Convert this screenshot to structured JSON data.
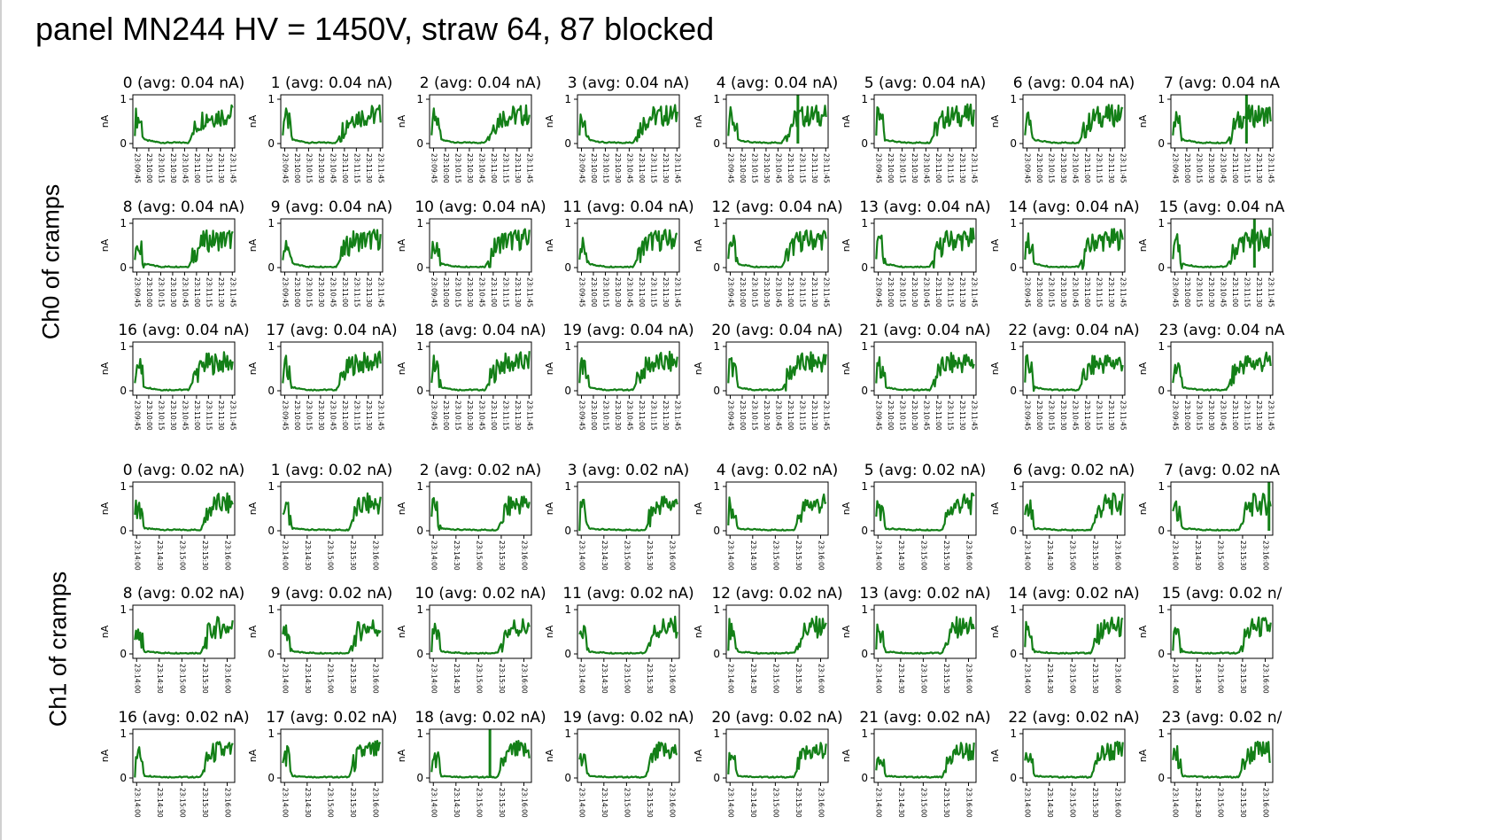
{
  "page": {
    "title": "panel MN244 HV = 1450V, straw 64, 87 blocked"
  },
  "groups": [
    {
      "label": "Ch0 of cramps"
    },
    {
      "label": "Ch1 of cramps"
    }
  ],
  "colors": {
    "series": "#137f17",
    "axes": "#000000",
    "background": "#ffffff"
  },
  "chart_data": [
    {
      "type": "line",
      "group": "Ch0 of cramps",
      "panels_per_row": 8,
      "channels": [
        {
          "title": "0 (avg: 0.04 nA)",
          "spike_at": null
        },
        {
          "title": "1 (avg: 0.04 nA)",
          "spike_at": null
        },
        {
          "title": "2 (avg: 0.04 nA)",
          "spike_at": null
        },
        {
          "title": "3 (avg: 0.04 nA)",
          "spike_at": null
        },
        {
          "title": "4 (avg: 0.04 nA)",
          "spike_at": "23:11:10"
        },
        {
          "title": "5 (avg: 0.04 nA)",
          "spike_at": null
        },
        {
          "title": "6 (avg: 0.04 nA)",
          "spike_at": null
        },
        {
          "title": "7 (avg: 0.04 nA",
          "spike_at": "23:11:15"
        },
        {
          "title": "8 (avg: 0.04 nA)",
          "spike_at": null
        },
        {
          "title": "9 (avg: 0.04 nA)",
          "spike_at": null
        },
        {
          "title": "10 (avg: 0.04 nA)",
          "spike_at": null
        },
        {
          "title": "11 (avg: 0.04 nA)",
          "spike_at": null
        },
        {
          "title": "12 (avg: 0.04 nA)",
          "spike_at": null
        },
        {
          "title": "13 (avg: 0.04 nA)",
          "spike_at": null
        },
        {
          "title": "14 (avg: 0.04 nA)",
          "spike_at": null
        },
        {
          "title": "15 (avg: 0.04 nA",
          "spike_at": "23:11:25"
        },
        {
          "title": "16 (avg: 0.04 nA)",
          "spike_at": null
        },
        {
          "title": "17 (avg: 0.04 nA)",
          "spike_at": null
        },
        {
          "title": "18 (avg: 0.04 nA)",
          "spike_at": null
        },
        {
          "title": "19 (avg: 0.04 nA)",
          "spike_at": null
        },
        {
          "title": "20 (avg: 0.04 nA)",
          "spike_at": null
        },
        {
          "title": "21 (avg: 0.04 nA)",
          "spike_at": null
        },
        {
          "title": "22 (avg: 0.04 nA)",
          "spike_at": null
        },
        {
          "title": "23 (avg: 0.04 nA",
          "spike_at": null
        }
      ],
      "ylabel": "nA",
      "yticks": [
        "0",
        "1"
      ],
      "xticks": [
        "23:09:45",
        "23:10:00",
        "23:10:15",
        "23:10:30",
        "23:10:45",
        "23:11:00",
        "23:11:15",
        "23:11:30",
        "23:11:45"
      ],
      "xlim": [
        "23:09:40",
        "23:11:48"
      ],
      "ylim": [
        -0.1,
        1.1
      ],
      "profile": [
        {
          "t": "23:09:42",
          "nA": 0.02
        },
        {
          "t": "23:09:44",
          "nA": 0.6
        },
        {
          "t": "23:09:50",
          "nA": 0.5
        },
        {
          "t": "23:09:55",
          "nA": 0.08
        },
        {
          "t": "23:10:15",
          "nA": 0.02
        },
        {
          "t": "23:10:50",
          "nA": 0.02
        },
        {
          "t": "23:11:00",
          "nA": 0.4
        },
        {
          "t": "23:11:10",
          "nA": 0.6
        },
        {
          "t": "23:11:45",
          "nA": 0.65
        }
      ]
    },
    {
      "type": "line",
      "group": "Ch1 of cramps",
      "panels_per_row": 8,
      "channels": [
        {
          "title": "0 (avg: 0.02 nA)",
          "spike_at": null
        },
        {
          "title": "1 (avg: 0.02 nA)",
          "spike_at": null
        },
        {
          "title": "2 (avg: 0.02 nA)",
          "spike_at": null
        },
        {
          "title": "3 (avg: 0.02 nA)",
          "spike_at": null
        },
        {
          "title": "4 (avg: 0.02 nA)",
          "spike_at": null
        },
        {
          "title": "5 (avg: 0.02 nA)",
          "spike_at": null
        },
        {
          "title": "6 (avg: 0.02 nA)",
          "spike_at": null
        },
        {
          "title": "7 (avg: 0.02 nA",
          "spike_at": "23:16:05"
        },
        {
          "title": "8 (avg: 0.02 nA)",
          "spike_at": null
        },
        {
          "title": "9 (avg: 0.02 nA)",
          "spike_at": null
        },
        {
          "title": "10 (avg: 0.02 nA)",
          "spike_at": null
        },
        {
          "title": "11 (avg: 0.02 nA)",
          "spike_at": null
        },
        {
          "title": "12 (avg: 0.02 nA)",
          "spike_at": null
        },
        {
          "title": "13 (avg: 0.02 nA)",
          "spike_at": null
        },
        {
          "title": "14 (avg: 0.02 nA)",
          "spike_at": null
        },
        {
          "title": "15 (avg: 0.02 n/",
          "spike_at": null
        },
        {
          "title": "16 (avg: 0.02 nA)",
          "spike_at": null
        },
        {
          "title": "17 (avg: 0.02 nA)",
          "spike_at": null
        },
        {
          "title": "18 (avg: 0.02 nA)",
          "spike_at": "23:15:15"
        },
        {
          "title": "19 (avg: 0.02 nA)",
          "spike_at": null
        },
        {
          "title": "20 (avg: 0.02 nA)",
          "spike_at": null
        },
        {
          "title": "21 (avg: 0.02 nA)",
          "spike_at": null
        },
        {
          "title": "22 (avg: 0.02 nA)",
          "spike_at": null
        },
        {
          "title": "23 (avg: 0.02 n/",
          "spike_at": null
        }
      ],
      "ylabel": "nA",
      "yticks": [
        "0",
        "1"
      ],
      "xticks": [
        "23:14:00",
        "23:14:30",
        "23:15:00",
        "23:15:30",
        "23:16:00"
      ],
      "xlim": [
        "23:13:55",
        "23:16:10"
      ],
      "ylim": [
        -0.1,
        1.1
      ],
      "profile": [
        {
          "t": "23:13:57",
          "nA": 0.02
        },
        {
          "t": "23:13:59",
          "nA": 0.55
        },
        {
          "t": "23:14:05",
          "nA": 0.45
        },
        {
          "t": "23:14:10",
          "nA": 0.05
        },
        {
          "t": "23:14:40",
          "nA": 0.02
        },
        {
          "t": "23:15:25",
          "nA": 0.02
        },
        {
          "t": "23:15:35",
          "nA": 0.45
        },
        {
          "t": "23:15:45",
          "nA": 0.6
        },
        {
          "t": "23:16:05",
          "nA": 0.6
        }
      ]
    }
  ]
}
